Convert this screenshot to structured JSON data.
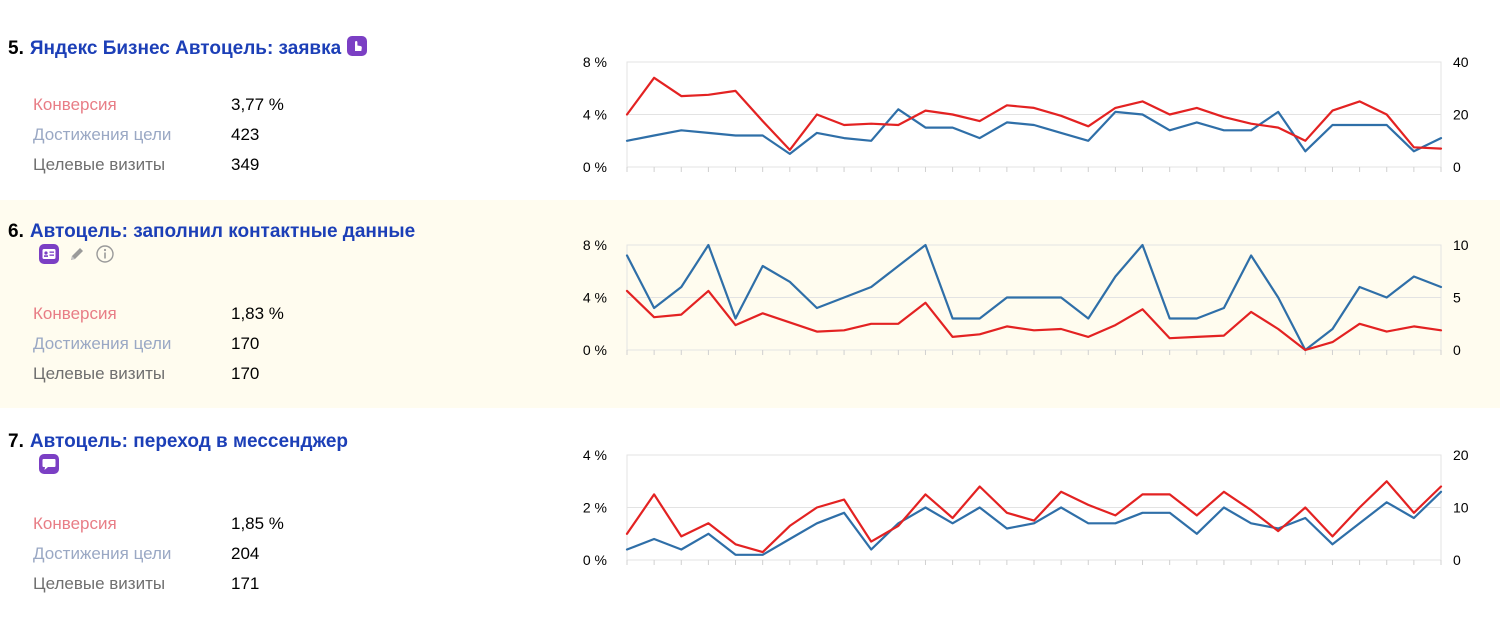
{
  "goals": [
    {
      "number": "5.",
      "title": "Яндекс Бизнес Автоцель: заявка",
      "icons": [
        "pointer-hand-icon"
      ],
      "metrics": {
        "conversion_label": "Конверсия",
        "conversion_value": "3,77 %",
        "reaches_label": "Достижения цели",
        "reaches_value": "423",
        "visits_label": "Целевые визиты",
        "visits_value": "349"
      }
    },
    {
      "number": "6.",
      "title": "Автоцель: заполнил контактные данные",
      "icons": [
        "contact-form-icon",
        "pencil-icon",
        "info-icon"
      ],
      "metrics": {
        "conversion_label": "Конверсия",
        "conversion_value": "1,83 %",
        "reaches_label": "Достижения цели",
        "reaches_value": "170",
        "visits_label": "Целевые визиты",
        "visits_value": "170"
      }
    },
    {
      "number": "7.",
      "title": "Автоцель: переход в мессенджер",
      "icons": [
        "message-bubble-icon"
      ],
      "metrics": {
        "conversion_label": "Конверсия",
        "conversion_value": "1,85 %",
        "reaches_label": "Достижения цели",
        "reaches_value": "204",
        "visits_label": "Целевые визиты",
        "visits_value": "171"
      }
    }
  ],
  "colors": {
    "conversion_line": "#e32222",
    "visits_line": "#2f6fa8",
    "title_link": "#1c3fb7",
    "icon_purple": "#7b3fc4",
    "highlight_bg": "#fffcef"
  },
  "chart_data": [
    {
      "type": "line",
      "y_left_ticks": [
        "8 %",
        "4 %",
        "0 %"
      ],
      "y_right_ticks": [
        "40",
        "20",
        "0"
      ],
      "y_left_range": [
        0,
        8
      ],
      "y_right_range": [
        0,
        40
      ],
      "grid": true,
      "series": [
        {
          "axis": "left",
          "color": "#e32222",
          "values": [
            4.0,
            6.8,
            5.4,
            5.5,
            5.8,
            3.5,
            1.3,
            4.0,
            3.2,
            3.3,
            3.2,
            4.3,
            4.0,
            3.5,
            4.7,
            4.5,
            3.9,
            3.1,
            4.5,
            5.0,
            4.0,
            4.5,
            3.8,
            3.3,
            3.0,
            2.0,
            4.3,
            5.0,
            4.0,
            1.5,
            1.4
          ]
        },
        {
          "axis": "right",
          "color": "#2f6fa8",
          "values": [
            10,
            12,
            14,
            13,
            12,
            12,
            5,
            13,
            11,
            10,
            22,
            15,
            15,
            11,
            17,
            16,
            13,
            10,
            21,
            20,
            14,
            17,
            14,
            14,
            21,
            6,
            16,
            16,
            16,
            6,
            11
          ]
        }
      ]
    },
    {
      "type": "line",
      "y_left_ticks": [
        "8 %",
        "4 %",
        "0 %"
      ],
      "y_right_ticks": [
        "10",
        "5",
        "0"
      ],
      "y_left_range": [
        0,
        8
      ],
      "y_right_range": [
        0,
        10
      ],
      "grid": true,
      "series": [
        {
          "axis": "left",
          "color": "#e32222",
          "values": [
            4.5,
            2.5,
            2.7,
            4.5,
            1.9,
            2.8,
            2.1,
            1.4,
            1.5,
            2.0,
            2.0,
            3.6,
            1.0,
            1.2,
            1.8,
            1.5,
            1.6,
            1.0,
            1.9,
            3.1,
            0.9,
            1.0,
            1.1,
            2.9,
            1.6,
            0.0,
            0.6,
            2.0,
            1.4,
            1.8,
            1.5
          ]
        },
        {
          "axis": "right",
          "color": "#2f6fa8",
          "values": [
            9,
            4,
            6,
            10,
            3,
            8,
            6.5,
            4,
            5,
            6,
            8,
            10,
            3,
            3,
            5,
            5,
            5,
            3,
            7,
            10,
            3,
            3,
            4,
            9,
            5,
            0,
            2,
            6,
            5,
            7,
            6
          ]
        }
      ]
    },
    {
      "type": "line",
      "y_left_ticks": [
        "4 %",
        "2 %",
        "0 %"
      ],
      "y_right_ticks": [
        "20",
        "10",
        "0"
      ],
      "y_left_range": [
        0,
        4
      ],
      "y_right_range": [
        0,
        20
      ],
      "grid": true,
      "series": [
        {
          "axis": "left",
          "color": "#e32222",
          "values": [
            1.0,
            2.5,
            0.9,
            1.4,
            0.6,
            0.3,
            1.3,
            2.0,
            2.3,
            0.7,
            1.3,
            2.5,
            1.6,
            2.8,
            1.8,
            1.5,
            2.6,
            2.1,
            1.7,
            2.5,
            2.5,
            1.7,
            2.6,
            1.9,
            1.1,
            2.0,
            0.9,
            2.0,
            3.0,
            1.8,
            2.8
          ]
        },
        {
          "axis": "right",
          "color": "#2f6fa8",
          "values": [
            2,
            4,
            2,
            5,
            1,
            1,
            4,
            7,
            9,
            2,
            7,
            10,
            7,
            10,
            6,
            7,
            10,
            7,
            7,
            9,
            9,
            5,
            10,
            7,
            6,
            8,
            3,
            7,
            11,
            8,
            13
          ]
        }
      ]
    }
  ]
}
